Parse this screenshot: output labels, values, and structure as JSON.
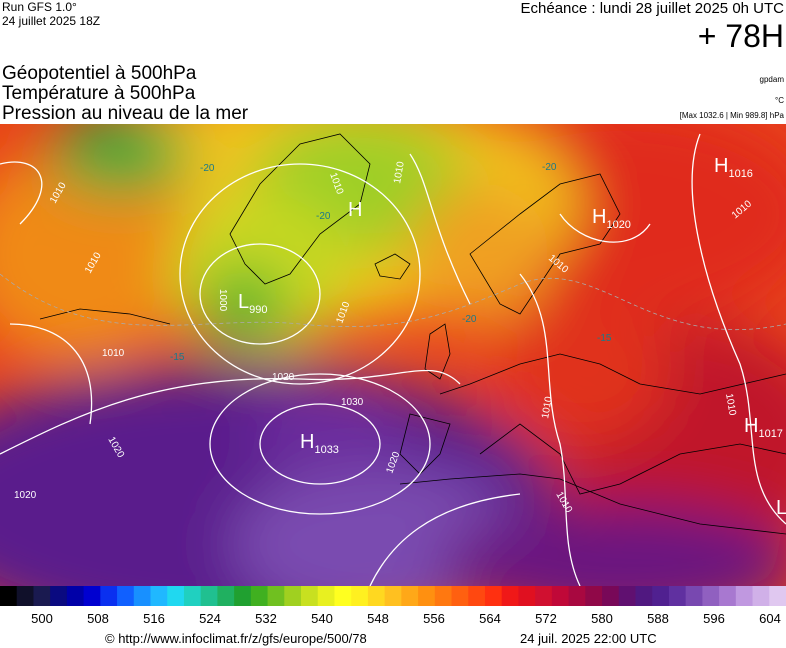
{
  "header": {
    "model": "Run GFS 1.0°",
    "run": "24 juillet 2025 18Z",
    "valid": "Echéance : lundi 28 juillet 2025 0h UTC",
    "lead": "+ 78H"
  },
  "titles": [
    "Géopotentiel à 500hPa",
    "Température à 500hPa",
    "Pression au niveau de la mer"
  ],
  "units": {
    "geopotential": "gpdam",
    "temperature": "°C",
    "pressure": "[Max 1032.6 | Min 989.8] hPa"
  },
  "centers": [
    {
      "type": "H",
      "value": 1016
    },
    {
      "type": "H",
      "value": 1020
    },
    {
      "type": "H"
    },
    {
      "type": "L",
      "value": 990
    },
    {
      "type": "H",
      "value": 1033
    },
    {
      "type": "H",
      "value": 1017
    },
    {
      "type": "L"
    }
  ],
  "isobar_labels": [
    1010,
    1010,
    1010,
    1020,
    1020,
    1020,
    1030,
    1020,
    1000,
    1010,
    1010,
    1010,
    1010,
    1010,
    1010,
    1010,
    1010
  ],
  "temp_labels": [
    -20,
    -20,
    -20,
    -20,
    -15,
    -15
  ],
  "legend": {
    "ticks": [
      500,
      508,
      516,
      524,
      532,
      540,
      548,
      556,
      564,
      572,
      580,
      588,
      596,
      604
    ]
  },
  "footer": {
    "url": "© http://www.infoclimat.fr/z/gfs/europe/500/78",
    "time": "24 juil. 2025 22:00 UTC"
  }
}
